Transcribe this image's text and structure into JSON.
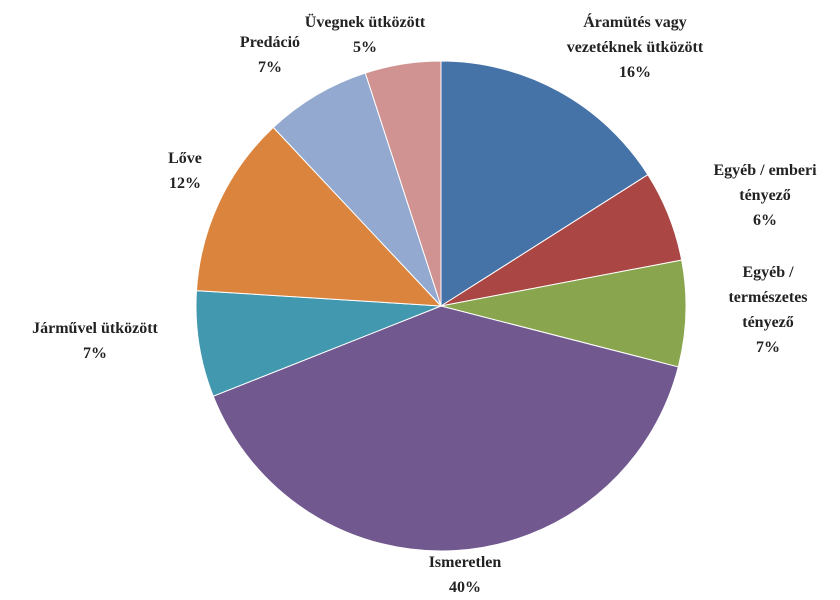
{
  "chart_data": {
    "type": "pie",
    "categories": [
      "Áramütés vagy vezetéknek ütközött",
      "Egyéb / emberi tényező",
      "Egyéb / természetes tényező",
      "Ismeretlen",
      "Járművel ütközött",
      "Lőve",
      "Predáció",
      "Üvegnek ütközött"
    ],
    "values": [
      16,
      6,
      7,
      40,
      7,
      12,
      7,
      5
    ],
    "value_labels": [
      "16%",
      "6%",
      "7%",
      "40%",
      "7%",
      "12%",
      "7%",
      "5%"
    ],
    "colors": [
      "#4572a7",
      "#aa4643",
      "#89a54e",
      "#71588f",
      "#4198af",
      "#db843d",
      "#93a9cf",
      "#d19392"
    ]
  }
}
